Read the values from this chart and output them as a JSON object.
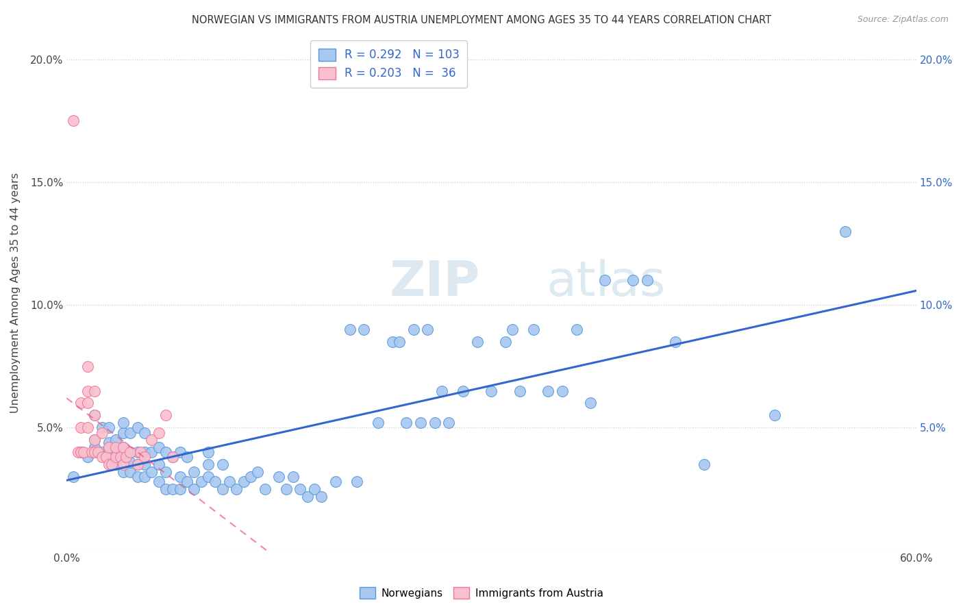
{
  "title": "NORWEGIAN VS IMMIGRANTS FROM AUSTRIA UNEMPLOYMENT AMONG AGES 35 TO 44 YEARS CORRELATION CHART",
  "source": "Source: ZipAtlas.com",
  "ylabel": "Unemployment Among Ages 35 to 44 years",
  "xlim": [
    0.0,
    0.6
  ],
  "ylim": [
    0.0,
    0.21
  ],
  "norwegian_color": "#a8c8f0",
  "norwegian_edge_color": "#5599dd",
  "austrian_color": "#f9c0ce",
  "austrian_edge_color": "#ee7799",
  "norwegian_line_color": "#3366cc",
  "austrian_line_color": "#ee5577",
  "watermark_zip": "ZIP",
  "watermark_atlas": "atlas",
  "norwegians_x": [
    0.005,
    0.01,
    0.015,
    0.02,
    0.02,
    0.02,
    0.025,
    0.025,
    0.03,
    0.03,
    0.03,
    0.03,
    0.03,
    0.035,
    0.035,
    0.035,
    0.04,
    0.04,
    0.04,
    0.04,
    0.04,
    0.04,
    0.045,
    0.045,
    0.045,
    0.045,
    0.05,
    0.05,
    0.05,
    0.05,
    0.055,
    0.055,
    0.055,
    0.055,
    0.06,
    0.06,
    0.065,
    0.065,
    0.065,
    0.07,
    0.07,
    0.07,
    0.075,
    0.075,
    0.08,
    0.08,
    0.08,
    0.085,
    0.085,
    0.09,
    0.09,
    0.095,
    0.1,
    0.1,
    0.1,
    0.105,
    0.11,
    0.11,
    0.115,
    0.12,
    0.125,
    0.13,
    0.135,
    0.14,
    0.15,
    0.155,
    0.16,
    0.165,
    0.17,
    0.175,
    0.18,
    0.19,
    0.2,
    0.205,
    0.21,
    0.22,
    0.23,
    0.235,
    0.24,
    0.245,
    0.25,
    0.255,
    0.26,
    0.265,
    0.27,
    0.28,
    0.29,
    0.3,
    0.31,
    0.315,
    0.32,
    0.33,
    0.34,
    0.35,
    0.36,
    0.37,
    0.38,
    0.4,
    0.41,
    0.43,
    0.45,
    0.5,
    0.55
  ],
  "norwegians_y": [
    0.03,
    0.04,
    0.038,
    0.042,
    0.045,
    0.055,
    0.04,
    0.05,
    0.038,
    0.04,
    0.042,
    0.044,
    0.05,
    0.035,
    0.04,
    0.045,
    0.032,
    0.038,
    0.04,
    0.042,
    0.048,
    0.052,
    0.032,
    0.036,
    0.04,
    0.048,
    0.03,
    0.035,
    0.04,
    0.05,
    0.03,
    0.035,
    0.04,
    0.048,
    0.032,
    0.04,
    0.028,
    0.035,
    0.042,
    0.025,
    0.032,
    0.04,
    0.025,
    0.038,
    0.025,
    0.03,
    0.04,
    0.028,
    0.038,
    0.025,
    0.032,
    0.028,
    0.03,
    0.035,
    0.04,
    0.028,
    0.025,
    0.035,
    0.028,
    0.025,
    0.028,
    0.03,
    0.032,
    0.025,
    0.03,
    0.025,
    0.03,
    0.025,
    0.022,
    0.025,
    0.022,
    0.028,
    0.09,
    0.028,
    0.09,
    0.052,
    0.085,
    0.085,
    0.052,
    0.09,
    0.052,
    0.09,
    0.052,
    0.065,
    0.052,
    0.065,
    0.085,
    0.065,
    0.085,
    0.09,
    0.065,
    0.09,
    0.065,
    0.065,
    0.09,
    0.06,
    0.11,
    0.11,
    0.11,
    0.085,
    0.035,
    0.055,
    0.13
  ],
  "austrians_x": [
    0.005,
    0.008,
    0.01,
    0.01,
    0.01,
    0.012,
    0.015,
    0.015,
    0.015,
    0.015,
    0.018,
    0.02,
    0.02,
    0.02,
    0.02,
    0.022,
    0.025,
    0.025,
    0.028,
    0.03,
    0.03,
    0.032,
    0.035,
    0.035,
    0.038,
    0.04,
    0.04,
    0.042,
    0.045,
    0.05,
    0.052,
    0.055,
    0.06,
    0.065,
    0.07,
    0.075
  ],
  "austrians_y": [
    0.175,
    0.04,
    0.04,
    0.05,
    0.06,
    0.04,
    0.05,
    0.06,
    0.065,
    0.075,
    0.04,
    0.04,
    0.045,
    0.055,
    0.065,
    0.04,
    0.038,
    0.048,
    0.038,
    0.035,
    0.042,
    0.035,
    0.038,
    0.042,
    0.038,
    0.035,
    0.042,
    0.038,
    0.04,
    0.035,
    0.04,
    0.038,
    0.045,
    0.048,
    0.055,
    0.038
  ]
}
